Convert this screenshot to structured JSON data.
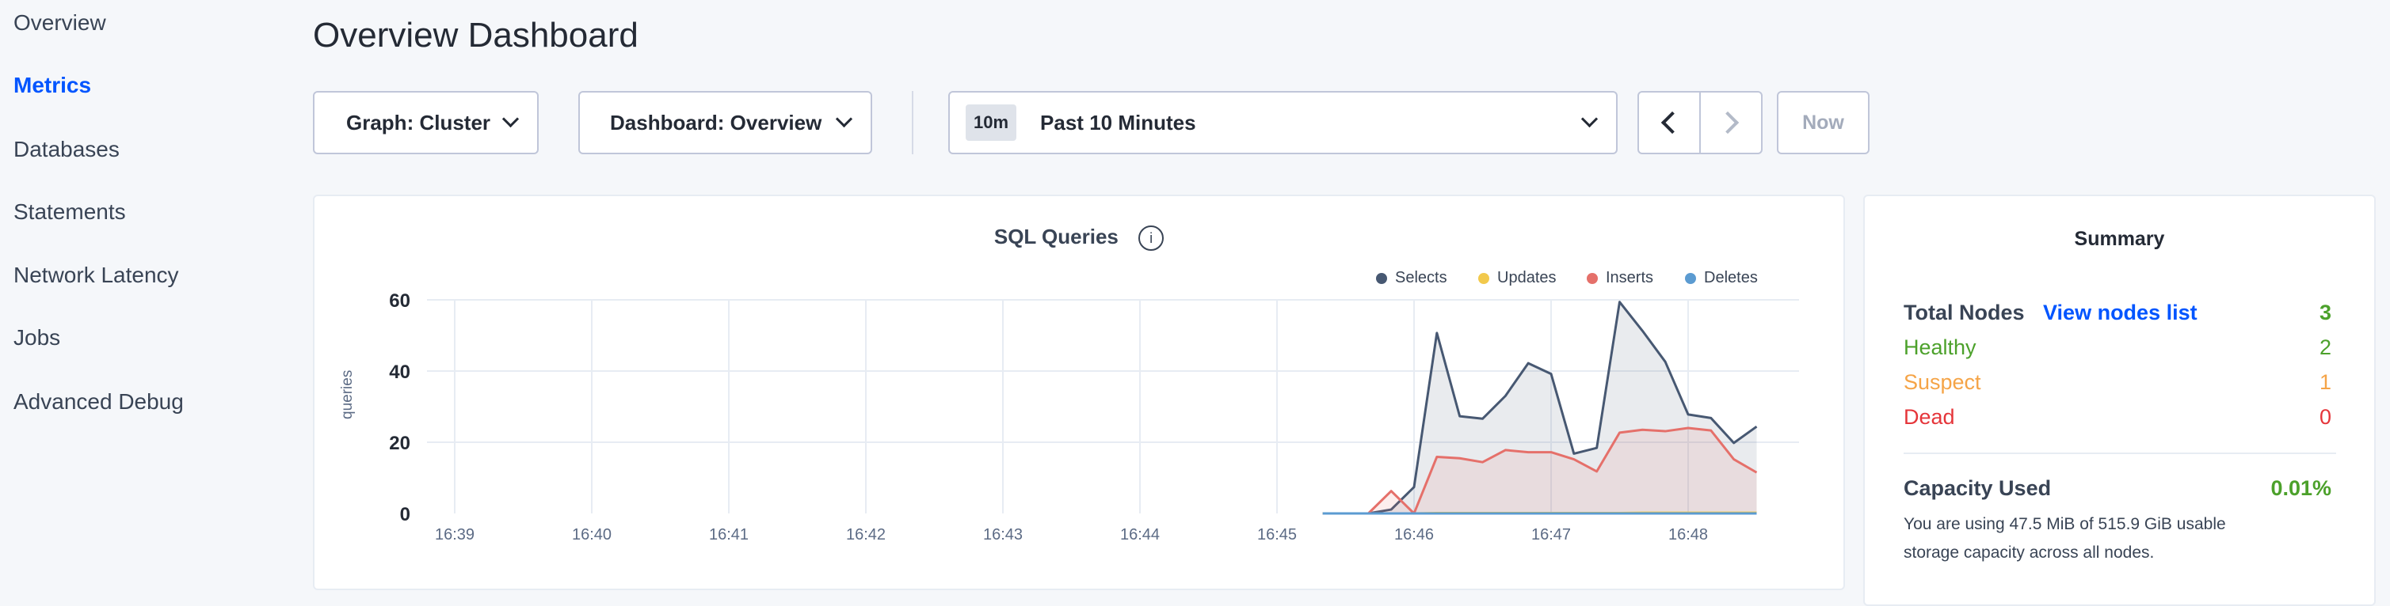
{
  "sidebar": {
    "items": [
      {
        "label": "Overview",
        "active": false
      },
      {
        "label": "Metrics",
        "active": true
      },
      {
        "label": "Databases",
        "active": false
      },
      {
        "label": "Statements",
        "active": false
      },
      {
        "label": "Network Latency",
        "active": false
      },
      {
        "label": "Jobs",
        "active": false
      },
      {
        "label": "Advanced Debug",
        "active": false
      }
    ]
  },
  "header": {
    "title": "Overview Dashboard"
  },
  "toolbar": {
    "graph_label": "Graph: Cluster",
    "dashboard_label": "Dashboard: Overview",
    "time_badge": "10m",
    "time_label": "Past 10 Minutes",
    "now_label": "Now"
  },
  "summary": {
    "title": "Summary",
    "total_nodes_label": "Total Nodes",
    "view_nodes_link": "View nodes list",
    "total_nodes": "3",
    "healthy_label": "Healthy",
    "healthy": "2",
    "suspect_label": "Suspect",
    "suspect": "1",
    "dead_label": "Dead",
    "dead": "0",
    "capacity_label": "Capacity Used",
    "capacity_value": "0.01%",
    "capacity_text": "You are using 47.5 MiB of 515.9 GiB usable storage capacity across all nodes."
  },
  "colors": {
    "accent": "#0055ff",
    "healthy": "#4ca12b",
    "suspect": "#f5a447",
    "dead": "#e5353a"
  },
  "chart_data": {
    "type": "area",
    "title": "SQL Queries",
    "ylabel": "queries",
    "xlabel": "",
    "ylim": [
      0,
      60
    ],
    "yticks": [
      0,
      20,
      40,
      60
    ],
    "xticks": [
      "16:39",
      "16:40",
      "16:41",
      "16:42",
      "16:43",
      "16:44",
      "16:45",
      "16:46",
      "16:47",
      "16:48"
    ],
    "grid": true,
    "legend_position": "top-right",
    "x": [
      "16:45:20",
      "16:45:30",
      "16:45:40",
      "16:45:50",
      "16:46:00",
      "16:46:10",
      "16:46:20",
      "16:46:30",
      "16:46:40",
      "16:46:50",
      "16:47:00",
      "16:47:10",
      "16:47:20",
      "16:47:30",
      "16:47:40",
      "16:47:50",
      "16:48:00",
      "16:48:10",
      "16:48:20",
      "16:48:30"
    ],
    "series": [
      {
        "name": "Selects",
        "color": "#475872",
        "values": [
          0,
          0,
          0,
          1.1,
          7.4,
          50.7,
          27.3,
          26.6,
          33,
          42.2,
          39.2,
          16.8,
          18.4,
          59.4,
          51.3,
          42.6,
          27.8,
          26.8,
          19.8,
          24.4
        ]
      },
      {
        "name": "Updates",
        "color": "#f2c94c",
        "values": [
          0,
          0,
          0,
          0,
          0,
          0.1,
          0.1,
          0.1,
          0.1,
          0.1,
          0.1,
          0.1,
          0.1,
          0.1,
          0.2,
          0.2,
          0.2,
          0.2,
          0.2,
          0.2
        ]
      },
      {
        "name": "Inserts",
        "color": "#e5706a",
        "values": [
          0,
          0,
          0,
          6.3,
          0,
          15.9,
          15.5,
          14.4,
          17.8,
          17.2,
          17.2,
          15.2,
          11.8,
          22.7,
          23.5,
          23.1,
          24,
          23.3,
          15.2,
          11.5
        ]
      },
      {
        "name": "Deletes",
        "color": "#5b9bd1",
        "values": [
          0,
          0,
          0,
          0,
          0,
          0,
          0,
          0,
          0,
          0,
          0,
          0,
          0,
          0,
          0,
          0,
          0,
          0,
          0,
          0
        ]
      }
    ]
  }
}
